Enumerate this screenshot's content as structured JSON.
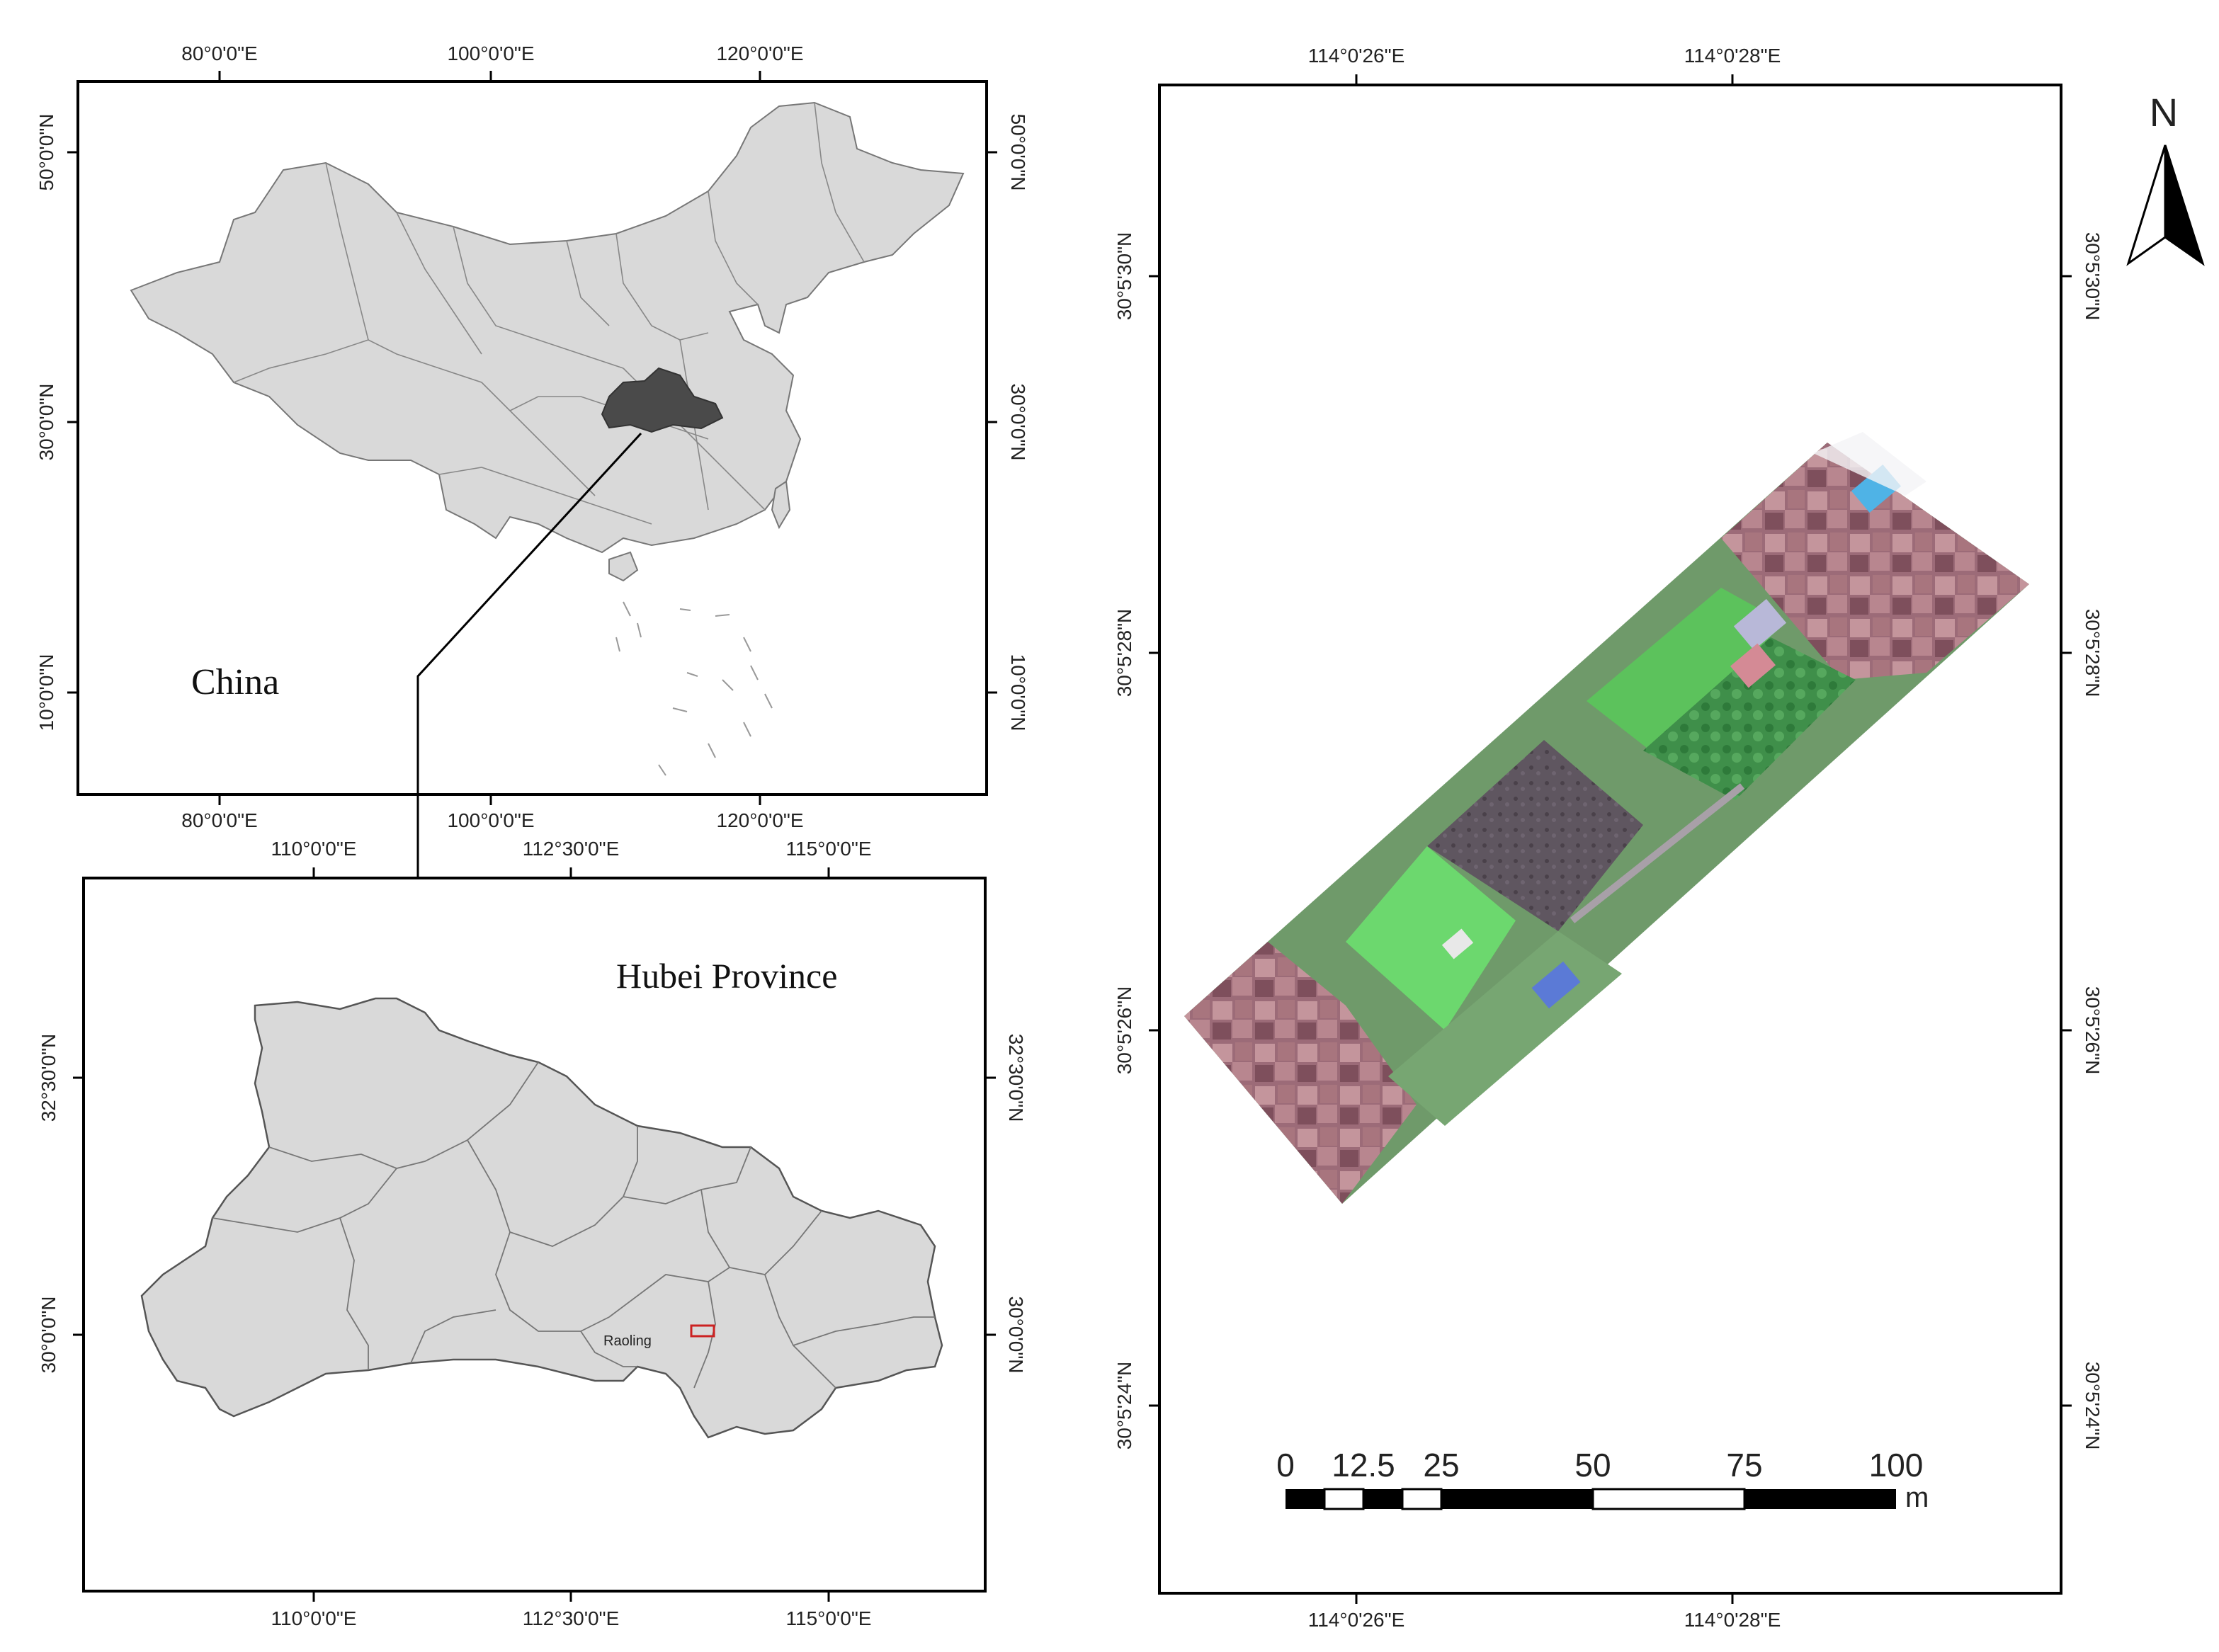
{
  "china_map": {
    "label": "China",
    "lon_labels": [
      "80°0'0\"E",
      "100°0'0\"E",
      "120°0'0\"E"
    ],
    "lat_labels": [
      "50°0'0\"N",
      "30°0'0\"N",
      "10°0'0\"N"
    ],
    "highlighted_region": "Hubei"
  },
  "hubei_map": {
    "label": "Hubei Province",
    "lon_labels": [
      "110°0'0\"E",
      "112°30'0\"E",
      "115°0'0\"E"
    ],
    "lat_labels": [
      "32°30'0\"N",
      "30°0'0\"N"
    ],
    "place_label": "Raoling"
  },
  "study_map": {
    "lon_labels": [
      "114°0'26\"E",
      "114°0'28\"E"
    ],
    "lat_labels": [
      "30°5'30\"N",
      "30°5'28\"N",
      "30°5'26\"N",
      "30°5'24\"N"
    ],
    "north_label": "N",
    "scale_bar": {
      "ticks": [
        "0",
        "12.5",
        "25",
        "50",
        "75",
        "100"
      ],
      "unit": "m"
    }
  },
  "colors": {
    "land_fill": "#d9d9d9",
    "hubei_highlight": "#4a4a4a",
    "study_box": "#cc2222"
  }
}
